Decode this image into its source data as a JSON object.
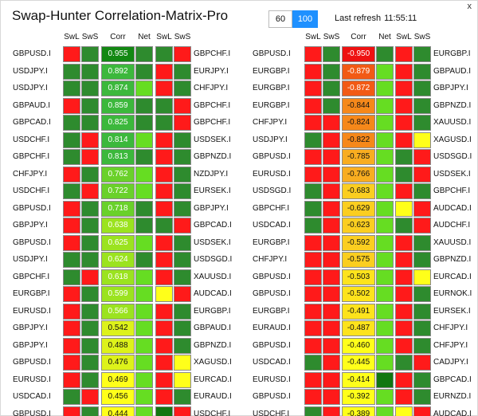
{
  "app": {
    "title": "Swap-Hunter Correlation-Matrix-Pro",
    "close_glyph": "x"
  },
  "controls": {
    "periods": [
      {
        "label": "60",
        "active": false
      },
      {
        "label": "100",
        "active": true
      }
    ],
    "refresh_label": "Last refresh",
    "refresh_time": "11:55:11"
  },
  "colors": {
    "red": "#ff1a1a",
    "green": "#2e8b2e",
    "lime": "#66dd22",
    "yellow": "#ffff1a",
    "darkgreen": "#117711"
  },
  "headers": {
    "swl": "SwL",
    "sws": "SwS",
    "corr": "Corr",
    "net": "Net"
  },
  "positive": [
    {
      "left": "GBPUSD.I",
      "lsl": "red",
      "lss": "green",
      "corr": "0.955",
      "net": "green",
      "rsl": "green",
      "rss": "red",
      "right": "GBPCHF.I"
    },
    {
      "left": "USDJPY.I",
      "lsl": "green",
      "lss": "green",
      "corr": "0.892",
      "net": "green",
      "rsl": "red",
      "rss": "green",
      "right": "EURJPY.I"
    },
    {
      "left": "USDJPY.I",
      "lsl": "green",
      "lss": "green",
      "corr": "0.874",
      "net": "lime",
      "rsl": "red",
      "rss": "green",
      "right": "CHFJPY.I"
    },
    {
      "left": "GBPAUD.I",
      "lsl": "red",
      "lss": "green",
      "corr": "0.859",
      "net": "green",
      "rsl": "green",
      "rss": "red",
      "right": "GBPCHF.I"
    },
    {
      "left": "GBPCAD.I",
      "lsl": "green",
      "lss": "green",
      "corr": "0.825",
      "net": "green",
      "rsl": "green",
      "rss": "red",
      "right": "GBPCHF.I"
    },
    {
      "left": "USDCHF.I",
      "lsl": "green",
      "lss": "red",
      "corr": "0.814",
      "net": "lime",
      "rsl": "red",
      "rss": "green",
      "right": "USDSEK.I"
    },
    {
      "left": "GBPCHF.I",
      "lsl": "green",
      "lss": "red",
      "corr": "0.813",
      "net": "green",
      "rsl": "red",
      "rss": "green",
      "right": "GBPNZD.I"
    },
    {
      "left": "CHFJPY.I",
      "lsl": "red",
      "lss": "green",
      "corr": "0.762",
      "net": "lime",
      "rsl": "red",
      "rss": "green",
      "right": "NZDJPY.I"
    },
    {
      "left": "USDCHF.I",
      "lsl": "green",
      "lss": "red",
      "corr": "0.722",
      "net": "lime",
      "rsl": "red",
      "rss": "green",
      "right": "EURSEK.I"
    },
    {
      "left": "GBPUSD.I",
      "lsl": "red",
      "lss": "green",
      "corr": "0.718",
      "net": "green",
      "rsl": "red",
      "rss": "green",
      "right": "GBPJPY.I"
    },
    {
      "left": "GBPJPY.I",
      "lsl": "red",
      "lss": "green",
      "corr": "0.638",
      "net": "green",
      "rsl": "green",
      "rss": "red",
      "right": "GBPCAD.I"
    },
    {
      "left": "GBPUSD.I",
      "lsl": "red",
      "lss": "green",
      "corr": "0.625",
      "net": "lime",
      "rsl": "red",
      "rss": "green",
      "right": "USDSEK.I"
    },
    {
      "left": "USDJPY.I",
      "lsl": "green",
      "lss": "green",
      "corr": "0.624",
      "net": "green",
      "rsl": "red",
      "rss": "green",
      "right": "USDSGD.I"
    },
    {
      "left": "GBPCHF.I",
      "lsl": "green",
      "lss": "red",
      "corr": "0.618",
      "net": "lime",
      "rsl": "red",
      "rss": "green",
      "right": "XAUUSD.I"
    },
    {
      "left": "EURGBP.I",
      "lsl": "red",
      "lss": "green",
      "corr": "0.599",
      "net": "lime",
      "rsl": "yellow",
      "rss": "red",
      "right": "AUDCAD.I"
    },
    {
      "left": "EURUSD.I",
      "lsl": "red",
      "lss": "green",
      "corr": "0.566",
      "net": "lime",
      "rsl": "red",
      "rss": "green",
      "right": "EURGBP.I"
    },
    {
      "left": "GBPJPY.I",
      "lsl": "red",
      "lss": "green",
      "corr": "0.542",
      "net": "lime",
      "rsl": "red",
      "rss": "green",
      "right": "GBPAUD.I"
    },
    {
      "left": "GBPJPY.I",
      "lsl": "red",
      "lss": "green",
      "corr": "0.488",
      "net": "lime",
      "rsl": "red",
      "rss": "green",
      "right": "GBPNZD.I"
    },
    {
      "left": "GBPUSD.I",
      "lsl": "red",
      "lss": "green",
      "corr": "0.476",
      "net": "lime",
      "rsl": "red",
      "rss": "yellow",
      "right": "XAGUSD.I"
    },
    {
      "left": "EURUSD.I",
      "lsl": "red",
      "lss": "green",
      "corr": "0.469",
      "net": "lime",
      "rsl": "red",
      "rss": "yellow",
      "right": "EURCAD.I"
    },
    {
      "left": "USDCAD.I",
      "lsl": "green",
      "lss": "red",
      "corr": "0.456",
      "net": "lime",
      "rsl": "red",
      "rss": "green",
      "right": "EURAUD.I"
    },
    {
      "left": "GBPUSD.I",
      "lsl": "red",
      "lss": "green",
      "corr": "0.444",
      "net": "lime",
      "rsl": "darkgreen",
      "rss": "red",
      "right": "USDCHF.I"
    }
  ],
  "negative": [
    {
      "left": "GBPUSD.I",
      "lsl": "red",
      "lss": "green",
      "corr": "-0.950",
      "net": "green",
      "rsl": "red",
      "rss": "green",
      "right": "EURGBP.I"
    },
    {
      "left": "EURGBP.I",
      "lsl": "red",
      "lss": "green",
      "corr": "-0.879",
      "net": "lime",
      "rsl": "red",
      "rss": "green",
      "right": "GBPAUD.I"
    },
    {
      "left": "EURGBP.I",
      "lsl": "red",
      "lss": "green",
      "corr": "-0.872",
      "net": "lime",
      "rsl": "red",
      "rss": "green",
      "right": "GBPJPY.I"
    },
    {
      "left": "EURGBP.I",
      "lsl": "red",
      "lss": "green",
      "corr": "-0.844",
      "net": "lime",
      "rsl": "red",
      "rss": "green",
      "right": "GBPNZD.I"
    },
    {
      "left": "CHFJPY.I",
      "lsl": "red",
      "lss": "red",
      "corr": "-0.824",
      "net": "lime",
      "rsl": "red",
      "rss": "green",
      "right": "XAUUSD.I"
    },
    {
      "left": "USDJPY.I",
      "lsl": "green",
      "lss": "red",
      "corr": "-0.822",
      "net": "lime",
      "rsl": "red",
      "rss": "yellow",
      "right": "XAGUSD.I"
    },
    {
      "left": "GBPUSD.I",
      "lsl": "red",
      "lss": "red",
      "corr": "-0.785",
      "net": "lime",
      "rsl": "green",
      "rss": "red",
      "right": "USDSGD.I"
    },
    {
      "left": "EURUSD.I",
      "lsl": "red",
      "lss": "red",
      "corr": "-0.766",
      "net": "lime",
      "rsl": "green",
      "rss": "red",
      "right": "USDSEK.I"
    },
    {
      "left": "USDSGD.I",
      "lsl": "green",
      "lss": "red",
      "corr": "-0.683",
      "net": "lime",
      "rsl": "red",
      "rss": "green",
      "right": "GBPCHF.I"
    },
    {
      "left": "GBPCHF.I",
      "lsl": "green",
      "lss": "red",
      "corr": "-0.629",
      "net": "lime",
      "rsl": "yellow",
      "rss": "red",
      "right": "AUDCAD.I"
    },
    {
      "left": "USDCAD.I",
      "lsl": "green",
      "lss": "red",
      "corr": "-0.623",
      "net": "lime",
      "rsl": "green",
      "rss": "red",
      "right": "AUDCHF.I"
    },
    {
      "left": "EURGBP.I",
      "lsl": "red",
      "lss": "red",
      "corr": "-0.592",
      "net": "lime",
      "rsl": "red",
      "rss": "green",
      "right": "XAUUSD.I"
    },
    {
      "left": "CHFJPY.I",
      "lsl": "red",
      "lss": "red",
      "corr": "-0.575",
      "net": "lime",
      "rsl": "red",
      "rss": "green",
      "right": "GBPNZD.I"
    },
    {
      "left": "GBPUSD.I",
      "lsl": "red",
      "lss": "red",
      "corr": "-0.503",
      "net": "lime",
      "rsl": "red",
      "rss": "yellow",
      "right": "EURCAD.I"
    },
    {
      "left": "GBPUSD.I",
      "lsl": "red",
      "lss": "red",
      "corr": "-0.502",
      "net": "lime",
      "rsl": "red",
      "rss": "green",
      "right": "EURNOK.I"
    },
    {
      "left": "EURGBP.I",
      "lsl": "red",
      "lss": "red",
      "corr": "-0.491",
      "net": "lime",
      "rsl": "red",
      "rss": "green",
      "right": "EURSEK.I"
    },
    {
      "left": "EURAUD.I",
      "lsl": "red",
      "lss": "red",
      "corr": "-0.487",
      "net": "lime",
      "rsl": "red",
      "rss": "green",
      "right": "CHFJPY.I"
    },
    {
      "left": "GBPUSD.I",
      "lsl": "red",
      "lss": "red",
      "corr": "-0.460",
      "net": "lime",
      "rsl": "red",
      "rss": "green",
      "right": "CHFJPY.I"
    },
    {
      "left": "USDCAD.I",
      "lsl": "green",
      "lss": "red",
      "corr": "-0.445",
      "net": "lime",
      "rsl": "green",
      "rss": "red",
      "right": "CADJPY.I"
    },
    {
      "left": "EURUSD.I",
      "lsl": "red",
      "lss": "red",
      "corr": "-0.414",
      "net": "darkgreen",
      "rsl": "red",
      "rss": "green",
      "right": "GBPCAD.I"
    },
    {
      "left": "GBPUSD.I",
      "lsl": "red",
      "lss": "red",
      "corr": "-0.392",
      "net": "lime",
      "rsl": "red",
      "rss": "green",
      "right": "EURNZD.I"
    },
    {
      "left": "USDCHF.I",
      "lsl": "green",
      "lss": "red",
      "corr": "-0.389",
      "net": "lime",
      "rsl": "yellow",
      "rss": "red",
      "right": "AUDCAD.I"
    }
  ]
}
